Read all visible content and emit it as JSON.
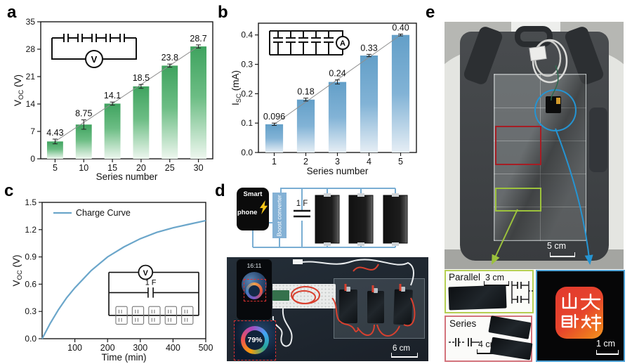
{
  "panel_labels": {
    "a": "a",
    "b": "b",
    "c": "c",
    "d": "d",
    "e": "e"
  },
  "colors": {
    "bar_green": "#43a863",
    "bar_blue": "#699fc8",
    "fit_line": "#8f8f8f",
    "curve_blue": "#6ba6ca",
    "wire_blue": "#7aaed3",
    "red_outline": "#a61d24",
    "green_outline": "#9cc23c",
    "blue_outline": "#2594d2"
  },
  "chart_data": [
    {
      "id": "a",
      "type": "bar",
      "title": "",
      "xlabel": "Series number",
      "ylabel": "Voc (V)",
      "ylabel_parts": {
        "main": "V",
        "sub": "OC",
        "unit": " (V)"
      },
      "categories": [
        "5",
        "10",
        "15",
        "20",
        "25",
        "30"
      ],
      "values": [
        4.43,
        8.75,
        14.1,
        18.5,
        23.8,
        28.7
      ],
      "value_labels": [
        "4.43",
        "8.75",
        "14.1",
        "18.5",
        "23.8",
        "28.7"
      ],
      "errors": [
        0.6,
        1.2,
        0.4,
        0.5,
        0.4,
        0.4
      ],
      "ylim": [
        0,
        35
      ],
      "yticks": [
        "0",
        "7",
        "14",
        "21",
        "28",
        "35"
      ],
      "grid": false,
      "fit_line": true,
      "bar_color": "#43a863",
      "inset": "five capacitors in series measured by voltmeter",
      "meter": "V"
    },
    {
      "id": "b",
      "type": "bar",
      "title": "",
      "xlabel": "Series number",
      "ylabel": "Isc (mA)",
      "ylabel_parts": {
        "main": "I",
        "sub": "SC",
        "unit": " (mA)"
      },
      "categories": [
        "1",
        "2",
        "3",
        "4",
        "5"
      ],
      "values": [
        0.096,
        0.18,
        0.24,
        0.33,
        0.4
      ],
      "value_labels": [
        "0.096",
        "0.18",
        "0.24",
        "0.33",
        "0.40"
      ],
      "errors": [
        0.004,
        0.005,
        0.007,
        0.004,
        0.003
      ],
      "ylim": [
        0,
        0.44
      ],
      "yticks": [
        "0.0",
        "0.1",
        "0.2",
        "0.3",
        "0.4"
      ],
      "grid": false,
      "fit_line": true,
      "bar_color": "#699fc8",
      "inset": "five capacitors in parallel measured by ammeter",
      "meter": "A"
    },
    {
      "id": "c",
      "type": "line",
      "title": "",
      "legend": "Charge Curve",
      "xlabel": "Time (min)",
      "ylabel_parts": {
        "main": "V",
        "sub": "OC",
        "unit": " (V)"
      },
      "x": [
        0,
        25,
        50,
        75,
        100,
        150,
        200,
        250,
        300,
        350,
        400,
        450,
        500
      ],
      "y": [
        0,
        0.17,
        0.32,
        0.45,
        0.56,
        0.75,
        0.9,
        1.01,
        1.1,
        1.17,
        1.22,
        1.26,
        1.3
      ],
      "xlim": [
        0,
        500
      ],
      "ylim": [
        0,
        1.5
      ],
      "xticks": [
        "100",
        "200",
        "300",
        "400",
        "500"
      ],
      "yticks": [
        "0.0",
        "0.3",
        "0.6",
        "0.9",
        "1.2",
        "1.5"
      ],
      "grid": false,
      "line_color": "#6ba6ca",
      "inset": {
        "meter": "V",
        "capacitance": "1 F"
      }
    }
  ],
  "panel_d": {
    "diagram": {
      "smartphone": "Smart phone",
      "boost_converter": "Boost converter",
      "capacitor": "1 F"
    },
    "photo": {
      "phone_time": "16:11",
      "battery_percent": "79%",
      "scale_bar": "6 cm"
    }
  },
  "panel_e": {
    "photo": {
      "scale_bar": "5 cm"
    },
    "insets": {
      "parallel": {
        "label": "Parallel",
        "scale_bar": "3 cm"
      },
      "series": {
        "label": "Series",
        "scale_bar": "4 cm"
      },
      "logo": {
        "text": "山大融媒",
        "scale_bar": "1 cm"
      }
    }
  }
}
